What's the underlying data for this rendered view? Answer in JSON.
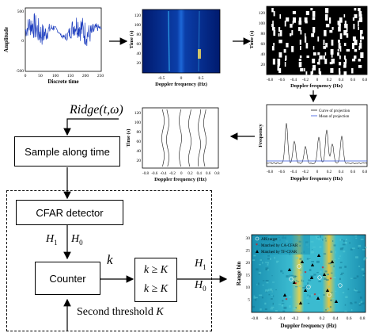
{
  "panel1": {
    "ylabel": "Amplitude",
    "xlabel": "Discrete time",
    "yticks": [
      "500",
      "0",
      "-500"
    ],
    "xticks": [
      "0",
      "50",
      "100",
      "150",
      "200",
      "250"
    ]
  },
  "panel2": {
    "ylabel": "Time (s)",
    "xlabel": "Doppler frequency (Hz)",
    "yticks": [
      "120",
      "100",
      "80",
      "60",
      "40",
      "20"
    ],
    "xticks": [
      "-0.5",
      "0",
      "0.5"
    ]
  },
  "panel3": {
    "ylabel": "Time (s)",
    "xlabel": "Doppler frequency (Hz)",
    "yticks": [
      "120",
      "100",
      "80",
      "60",
      "40",
      "20"
    ],
    "xticks": [
      "-0.8",
      "-0.6",
      "-0.4",
      "-0.2",
      "0",
      "0.2",
      "0.4",
      "0.6",
      "0.8"
    ]
  },
  "panel4": {
    "ylabel": "Time (s)",
    "xlabel": "Doppler frequency (Hz)",
    "yticks": [
      "120",
      "100",
      "80",
      "60",
      "40",
      "20"
    ],
    "xticks": [
      "-0.8",
      "-0.6",
      "-0.4",
      "-0.2",
      "0",
      "0.2",
      "0.4",
      "0.6",
      "0.8"
    ]
  },
  "panel5": {
    "ylabel": "Frequency",
    "xlabel": "Doppler frequency (Hz)",
    "xticks": [
      "-0.8",
      "-0.6",
      "-0.4",
      "-0.2",
      "0",
      "0.2",
      "0.4",
      "0.6",
      "0.8"
    ],
    "legend": [
      "Curve of projection",
      "Mean of projection"
    ]
  },
  "panel6": {
    "ylabel": "Range bin",
    "xlabel": "Doppler frequency (Hz)",
    "yticks": [
      "30",
      "25",
      "20",
      "15",
      "10",
      "5"
    ],
    "xticks": [
      "-0.8",
      "-0.6",
      "-0.4",
      "-0.2",
      "0",
      "0.2",
      "0.4",
      "0.6",
      "0.8"
    ],
    "legend": [
      "AIS target",
      "Matched by CA-CFAR",
      "Matched by TF-CFAR"
    ]
  },
  "flow": {
    "ridge_label": "Ridge(t,ω)",
    "sample_box": "Sample along time",
    "cfar_box": "CFAR detector",
    "h1_left": "H",
    "h1_left_sub": "1",
    "h0_left": "H",
    "h0_left_sub": "0",
    "counter_box": "Counter",
    "k_label": "k",
    "rule_top": "k ≥ K",
    "rule_bottom": "k ≥ K",
    "h1_right": "H",
    "h1_right_sub": "1",
    "h0_right": "H",
    "h0_right_sub": "0",
    "second_threshold": "Second threshold",
    "second_threshold_var": "K"
  },
  "colors": {
    "signal": "#1f3fbf",
    "jet_bg": "#0a2b8f",
    "mean_line": "#3355dd"
  }
}
